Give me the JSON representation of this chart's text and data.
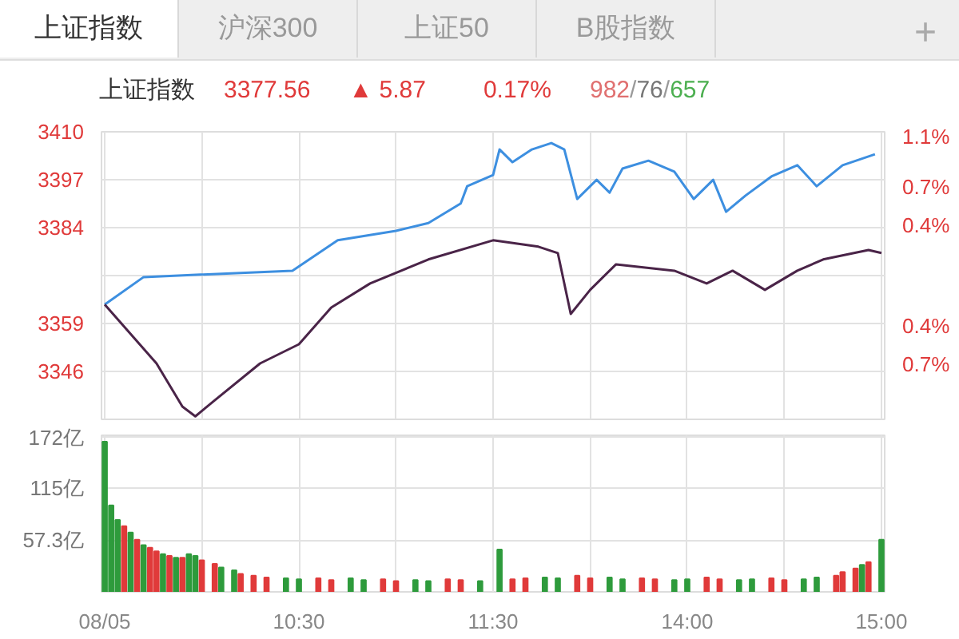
{
  "chart_data": [
    {
      "type": "line",
      "title": "上证指数",
      "annotations": [
        "上证指数",
        "沪深300",
        "上证50",
        "B股指数",
        "+",
        "3377.56",
        "▲ 5.87",
        "0.17%",
        "982/76/657"
      ],
      "categories": [
        null,
        null,
        null,
        null,
        null,
        null,
        null,
        null,
        null,
        null,
        null,
        null,
        null,
        null,
        null,
        null,
        null,
        null,
        null,
        null,
        null,
        null,
        null,
        null,
        null,
        null,
        null,
        null,
        null,
        null,
        null,
        null,
        null,
        null,
        null,
        null,
        null,
        null,
        null,
        null,
        null,
        null,
        null,
        null,
        null,
        null,
        null,
        null,
        null,
        null,
        null,
        null,
        null,
        null,
        null,
        null,
        null,
        null,
        null,
        null,
        null,
        null,
        null,
        null,
        null,
        null,
        null,
        null,
        null,
        null,
        null,
        null,
        null,
        null,
        null,
        null,
        null,
        null,
        null,
        null,
        null,
        null,
        null,
        null,
        null,
        null,
        null,
        null,
        null,
        null,
        null,
        null,
        null,
        null,
        null,
        null,
        null,
        null,
        null,
        null,
        null,
        null,
        null,
        null,
        null,
        null,
        null,
        null,
        null,
        null,
        null,
        null,
        null,
        null,
        null,
        null,
        null,
        null,
        null,
        null,
        null
      ],
      "ylim": [
        3333.4,
        3410.0
      ],
      "yticks": [
        {
          "value": 3410.0,
          "label": "3410"
        },
        {
          "value": 3397.2,
          "label": "3397"
        },
        {
          "value": 3384.46,
          "label": "3384"
        },
        {
          "value": 3371.69,
          "label": null
        },
        {
          "value": 3358.9,
          "label": "3359"
        },
        {
          "value": 3346.2,
          "label": "3346"
        }
      ],
      "y2lim": [
        -1.135,
        1.135
      ],
      "y2ticks": [
        {
          "value": 1.1,
          "label": "1.1%"
        },
        {
          "value": 0.7,
          "label": "0.7%"
        },
        {
          "value": 0.4,
          "label": "0.4%"
        },
        {
          "value": 0,
          "label": null
        },
        {
          "value": -0.4,
          "label": "0.4%"
        },
        {
          "value": -0.7,
          "label": "0.7%"
        }
      ],
      "grid": true,
      "tick_labels": "y",
      "series": [
        {
          "color": "#3d8fe0",
          "values": [
            3364.0,
            null,
            null,
            null,
            null,
            null,
            3371.3,
            null,
            null,
            null,
            null,
            null,
            null,
            null,
            null,
            null,
            null,
            null,
            null,
            null,
            null,
            null,
            null,
            null,
            null,
            null,
            null,
            null,
            null,
            3373.0,
            null,
            null,
            null,
            null,
            null,
            null,
            3381.1,
            null,
            null,
            null,
            null,
            null,
            null,
            null,
            null,
            3383.6,
            null,
            null,
            null,
            null,
            3385.7,
            null,
            null,
            null,
            null,
            3390.9,
            3395.5,
            null,
            null,
            null,
            3398.5,
            3405.3,
            null,
            3401.9,
            null,
            null,
            3405.3,
            null,
            null,
            3407.0,
            null,
            3405.3,
            null,
            3392.1,
            null,
            null,
            3397.2,
            null,
            3393.8,
            null,
            3400.2,
            null,
            null,
            null,
            3402.3,
            null,
            null,
            null,
            3399.4,
            null,
            null,
            3392.1,
            null,
            null,
            3397.2,
            null,
            3388.7,
            null,
            null,
            3393.0,
            null,
            null,
            null,
            3398.1,
            null,
            null,
            null,
            3401.1,
            null,
            null,
            3395.5,
            null,
            null,
            null,
            3401.1,
            null,
            null,
            null,
            null,
            3404.0,
            null
          ]
        },
        {
          "color": "#4a2448",
          "values": [
            3364.0,
            null,
            null,
            null,
            null,
            null,
            null,
            null,
            3348.3,
            null,
            null,
            null,
            3336.8,
            null,
            3334.2,
            null,
            null,
            3338.5,
            null,
            null,
            null,
            null,
            null,
            null,
            3348.3,
            null,
            null,
            null,
            null,
            null,
            3353.4,
            null,
            null,
            null,
            null,
            3363.2,
            null,
            null,
            null,
            null,
            null,
            3369.6,
            null,
            null,
            null,
            null,
            null,
            null,
            null,
            null,
            3376.0,
            null,
            null,
            null,
            null,
            null,
            null,
            null,
            null,
            null,
            3381.1,
            null,
            null,
            null,
            null,
            null,
            null,
            3379.4,
            null,
            null,
            3377.7,
            null,
            3361.5,
            null,
            null,
            3367.9,
            null,
            null,
            null,
            3374.7,
            null,
            null,
            null,
            null,
            null,
            null,
            null,
            null,
            3373.0,
            null,
            null,
            null,
            null,
            3369.6,
            null,
            null,
            null,
            3373.0,
            null,
            null,
            null,
            null,
            3367.9,
            null,
            null,
            null,
            null,
            3373.0,
            null,
            null,
            null,
            3376.0,
            null,
            null,
            null,
            null,
            null,
            null,
            3378.5,
            null,
            3377.7
          ]
        }
      ]
    },
    {
      "type": "bar",
      "categories": [
        "08/05",
        null,
        null,
        null,
        null,
        null,
        null,
        null,
        null,
        null,
        null,
        null,
        null,
        null,
        null,
        null,
        null,
        null,
        null,
        null,
        null,
        null,
        null,
        null,
        null,
        null,
        null,
        null,
        null,
        null,
        "10:30",
        null,
        null,
        null,
        null,
        null,
        null,
        null,
        null,
        null,
        null,
        null,
        null,
        null,
        null,
        null,
        null,
        null,
        null,
        null,
        null,
        null,
        null,
        null,
        null,
        null,
        null,
        null,
        null,
        null,
        "11:30",
        null,
        null,
        null,
        null,
        null,
        null,
        null,
        null,
        null,
        null,
        null,
        null,
        null,
        null,
        null,
        null,
        null,
        null,
        null,
        null,
        null,
        null,
        null,
        null,
        null,
        null,
        null,
        null,
        null,
        "14:00",
        null,
        null,
        null,
        null,
        null,
        null,
        null,
        null,
        null,
        null,
        null,
        null,
        null,
        null,
        null,
        null,
        null,
        null,
        null,
        null,
        null,
        null,
        null,
        null,
        null,
        null,
        null,
        null,
        null,
        "15:00"
      ],
      "ylim": [
        0,
        174
      ],
      "yticks": [
        {
          "value": 57.3,
          "label": "57.3亿"
        },
        {
          "value": 115,
          "label": "115亿"
        },
        {
          "value": 172,
          "label": "172亿"
        }
      ],
      "grid": true,
      "values": [
        167,
        96,
        80,
        73,
        66,
        58,
        52,
        49,
        45,
        42,
        40,
        38,
        38,
        42,
        40,
        35,
        null,
        31,
        27,
        null,
        24,
        20,
        null,
        18,
        null,
        16,
        null,
        null,
        15,
        null,
        14,
        null,
        null,
        15,
        null,
        13,
        null,
        null,
        15,
        null,
        13,
        null,
        null,
        14,
        null,
        12,
        null,
        null,
        13,
        null,
        12,
        null,
        null,
        14,
        null,
        13,
        null,
        null,
        12,
        null,
        null,
        47,
        null,
        14,
        null,
        15,
        null,
        null,
        16,
        null,
        15,
        null,
        null,
        18,
        null,
        15,
        null,
        null,
        16,
        null,
        14,
        null,
        null,
        15,
        null,
        14,
        null,
        null,
        13,
        null,
        14,
        null,
        null,
        16,
        null,
        14,
        null,
        null,
        13,
        null,
        14,
        null,
        null,
        15,
        null,
        13,
        null,
        null,
        14,
        null,
        16,
        null,
        null,
        18,
        22,
        null,
        26,
        30,
        33,
        null,
        58
      ],
      "colors": [
        "#2e9b3c",
        "#2e9b3c",
        "#2e9b3c",
        "#e03a3a",
        "#2e9b3c",
        "#e03a3a",
        "#2e9b3c",
        "#e03a3a",
        "#e03a3a",
        "#2e9b3c",
        "#e03a3a",
        "#2e9b3c",
        "#e03a3a",
        "#2e9b3c",
        "#2e9b3c",
        "#e03a3a",
        "#2e9b3c",
        "#e03a3a",
        "#2e9b3c",
        "#e03a3a",
        "#2e9b3c",
        "#e03a3a",
        "#2e9b3c",
        "#e03a3a",
        "#2e9b3c",
        "#e03a3a",
        "#2e9b3c",
        "#e03a3a",
        "#2e9b3c",
        "#e03a3a",
        "#2e9b3c",
        "#e03a3a",
        "#2e9b3c",
        "#e03a3a",
        "#2e9b3c",
        "#e03a3a",
        "#2e9b3c",
        "#e03a3a",
        "#2e9b3c",
        "#e03a3a",
        "#2e9b3c",
        "#e03a3a",
        "#2e9b3c",
        "#e03a3a",
        "#2e9b3c",
        "#e03a3a",
        "#2e9b3c",
        "#e03a3a",
        "#2e9b3c",
        "#e03a3a",
        "#2e9b3c",
        "#e03a3a",
        "#2e9b3c",
        "#e03a3a",
        "#2e9b3c",
        "#e03a3a",
        "#2e9b3c",
        "#e03a3a",
        "#2e9b3c",
        "#e03a3a",
        "#2e9b3c",
        "#2e9b3c",
        "#2e9b3c",
        "#e03a3a",
        "#2e9b3c",
        "#e03a3a",
        "#2e9b3c",
        "#e03a3a",
        "#2e9b3c",
        "#e03a3a",
        "#2e9b3c",
        "#e03a3a",
        "#2e9b3c",
        "#e03a3a",
        "#2e9b3c",
        "#e03a3a",
        "#2e9b3c",
        "#e03a3a",
        "#2e9b3c",
        "#e03a3a",
        "#2e9b3c",
        "#e03a3a",
        "#2e9b3c",
        "#e03a3a",
        "#2e9b3c",
        "#e03a3a",
        "#2e9b3c",
        "#e03a3a",
        "#2e9b3c",
        "#e03a3a",
        "#2e9b3c",
        "#e03a3a",
        "#2e9b3c",
        "#e03a3a",
        "#2e9b3c",
        "#e03a3a",
        "#2e9b3c",
        "#e03a3a",
        "#2e9b3c",
        "#e03a3a",
        "#2e9b3c",
        "#e03a3a",
        "#2e9b3c",
        "#e03a3a",
        "#2e9b3c",
        "#e03a3a",
        "#2e9b3c",
        "#e03a3a",
        "#2e9b3c",
        "#e03a3a",
        "#2e9b3c",
        "#e03a3a",
        "#2e9b3c",
        "#e03a3a",
        "#e03a3a",
        "#e03a3a",
        "#e03a3a",
        "#2e9b3c",
        "#e03a3a",
        "#e03a3a",
        "#2e9b3c"
      ]
    }
  ]
}
